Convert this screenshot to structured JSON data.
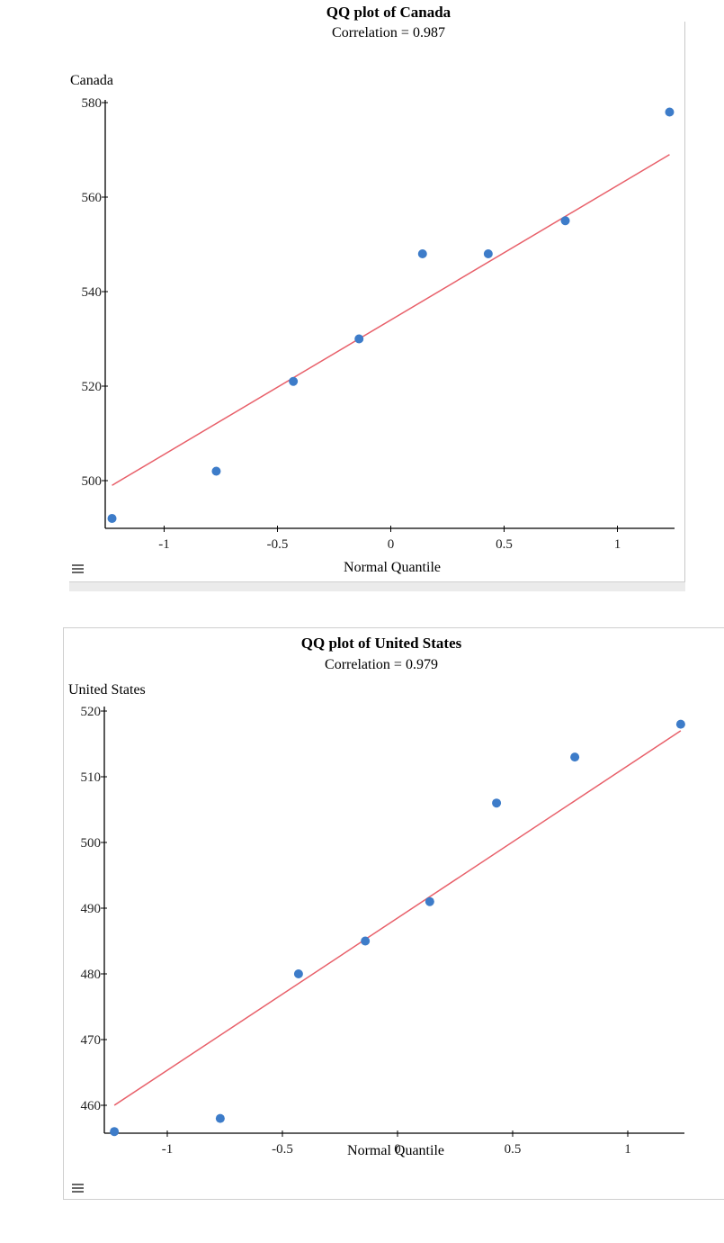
{
  "charts": [
    {
      "title": "QQ plot of Canada",
      "subtitle": "Correlation = 0.987",
      "ylabel": "Canada",
      "xlabel": "Normal Quantile",
      "yticks": [
        "580",
        "560",
        "540",
        "520",
        "500"
      ],
      "xticks": [
        "-1",
        "-0.5",
        "0",
        "0.5",
        "1"
      ],
      "menu_icon": "hamburger-menu-icon"
    },
    {
      "title": "QQ plot of United States",
      "subtitle": "Correlation = 0.979",
      "ylabel": "United States",
      "xlabel": "Normal Quantile",
      "yticks": [
        "520",
        "510",
        "500",
        "490",
        "480",
        "470",
        "460"
      ],
      "xticks": [
        "-1",
        "-0.5",
        "0",
        "0.5",
        "1"
      ],
      "menu_icon": "hamburger-menu-icon"
    }
  ],
  "colors": {
    "points": "#3d7cc9",
    "fit_line": "#e8606a",
    "axis": "#000000"
  },
  "chart_data": [
    {
      "type": "scatter",
      "title": "QQ plot of Canada",
      "subtitle": "Correlation = 0.987",
      "xlabel": "Normal Quantile",
      "ylabel": "Canada",
      "x": [
        -1.23,
        -0.77,
        -0.43,
        -0.14,
        0.14,
        0.43,
        0.77,
        1.23
      ],
      "y": [
        492,
        502,
        521,
        530,
        548,
        548,
        555,
        578
      ],
      "fit_line": {
        "x": [
          -1.23,
          1.23
        ],
        "y": [
          499,
          569
        ]
      },
      "xlim": [
        -1.3,
        1.3
      ],
      "ylim": [
        489,
        580
      ],
      "xticks": [
        -1,
        -0.5,
        0,
        0.5,
        1
      ],
      "yticks": [
        500,
        520,
        540,
        560,
        580
      ],
      "grid": false,
      "legend": null
    },
    {
      "type": "scatter",
      "title": "QQ plot of United States",
      "subtitle": "Correlation = 0.979",
      "xlabel": "Normal Quantile",
      "ylabel": "United States",
      "x": [
        -1.23,
        -0.77,
        -0.43,
        -0.14,
        0.14,
        0.43,
        0.77,
        1.23
      ],
      "y": [
        456,
        458,
        480,
        485,
        491,
        506,
        513,
        518
      ],
      "fit_line": {
        "x": [
          -1.23,
          1.23
        ],
        "y": [
          460,
          517
        ]
      },
      "xlim": [
        -1.3,
        1.3
      ],
      "ylim": [
        454,
        520
      ],
      "xticks": [
        -1,
        -0.5,
        0,
        0.5,
        1
      ],
      "yticks": [
        460,
        470,
        480,
        490,
        500,
        510,
        520
      ],
      "grid": false,
      "legend": null
    }
  ]
}
